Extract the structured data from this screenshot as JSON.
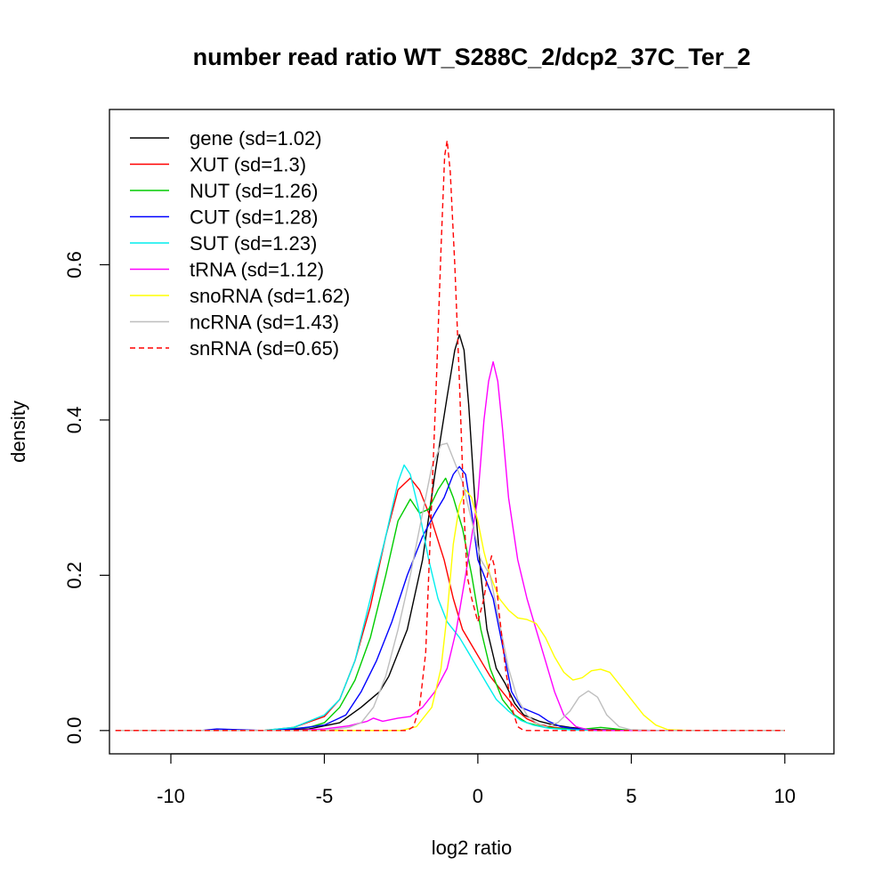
{
  "chart_data": {
    "type": "line",
    "title": "number read ratio WT_S288C_2/dcp2_37C_Ter_2",
    "xlabel": "log2 ratio",
    "ylabel": "density",
    "xlim": [
      -12.0,
      11.6
    ],
    "ylim": [
      -0.03,
      0.8
    ],
    "x_ticks": [
      -10,
      -5,
      0,
      5,
      10
    ],
    "x_tick_labels": [
      "-10",
      "-5",
      "0",
      "5",
      "10"
    ],
    "y_ticks": [
      0.0,
      0.2,
      0.4,
      0.6
    ],
    "y_tick_labels": [
      "0.0",
      "0.2",
      "0.4",
      "0.6"
    ],
    "grid": false,
    "legend_position": "top-left",
    "series": [
      {
        "name": "gene (sd=1.02)",
        "color": "#000000",
        "dashed": false,
        "points": [
          [
            -11.8,
            0
          ],
          [
            -7,
            0
          ],
          [
            -5.5,
            0.002
          ],
          [
            -4.5,
            0.01
          ],
          [
            -3.8,
            0.03
          ],
          [
            -3.2,
            0.05
          ],
          [
            -2.9,
            0.07
          ],
          [
            -2.3,
            0.13
          ],
          [
            -1.8,
            0.22
          ],
          [
            -1.4,
            0.33
          ],
          [
            -1.0,
            0.43
          ],
          [
            -0.75,
            0.49
          ],
          [
            -0.6,
            0.51
          ],
          [
            -0.45,
            0.49
          ],
          [
            -0.3,
            0.42
          ],
          [
            -0.1,
            0.3
          ],
          [
            0.1,
            0.2
          ],
          [
            0.3,
            0.13
          ],
          [
            0.6,
            0.08
          ],
          [
            0.9,
            0.06
          ],
          [
            1.2,
            0.035
          ],
          [
            1.5,
            0.02
          ],
          [
            2,
            0.012
          ],
          [
            2.5,
            0.007
          ],
          [
            3,
            0.004
          ],
          [
            3.5,
            0.002
          ],
          [
            4,
            0.001
          ],
          [
            5,
            0
          ],
          [
            10,
            0
          ]
        ]
      },
      {
        "name": "XUT (sd=1.3)",
        "color": "#ff0000",
        "dashed": false,
        "points": [
          [
            -11.8,
            0
          ],
          [
            -7,
            0
          ],
          [
            -6,
            0.004
          ],
          [
            -5,
            0.018
          ],
          [
            -4.5,
            0.04
          ],
          [
            -4,
            0.09
          ],
          [
            -3.5,
            0.16
          ],
          [
            -3,
            0.25
          ],
          [
            -2.6,
            0.31
          ],
          [
            -2.2,
            0.325
          ],
          [
            -1.9,
            0.31
          ],
          [
            -1.5,
            0.27
          ],
          [
            -1.1,
            0.22
          ],
          [
            -0.8,
            0.17
          ],
          [
            -0.5,
            0.13
          ],
          [
            -0.2,
            0.11
          ],
          [
            0.1,
            0.09
          ],
          [
            0.4,
            0.07
          ],
          [
            0.7,
            0.055
          ],
          [
            1.0,
            0.04
          ],
          [
            1.3,
            0.025
          ],
          [
            1.6,
            0.015
          ],
          [
            2,
            0.008
          ],
          [
            2.5,
            0.004
          ],
          [
            3,
            0.002
          ],
          [
            3.5,
            0.001
          ],
          [
            4,
            0
          ],
          [
            10,
            0
          ]
        ]
      },
      {
        "name": "NUT (sd=1.26)",
        "color": "#00cc00",
        "dashed": false,
        "points": [
          [
            -11.8,
            0
          ],
          [
            -7,
            0
          ],
          [
            -5.5,
            0.004
          ],
          [
            -5,
            0.01
          ],
          [
            -4.5,
            0.03
          ],
          [
            -4,
            0.065
          ],
          [
            -3.5,
            0.12
          ],
          [
            -3,
            0.2
          ],
          [
            -2.6,
            0.27
          ],
          [
            -2.2,
            0.298
          ],
          [
            -1.9,
            0.28
          ],
          [
            -1.6,
            0.285
          ],
          [
            -1.3,
            0.31
          ],
          [
            -1.05,
            0.325
          ],
          [
            -0.8,
            0.3
          ],
          [
            -0.5,
            0.26
          ],
          [
            -0.2,
            0.2
          ],
          [
            0.1,
            0.13
          ],
          [
            0.4,
            0.08
          ],
          [
            0.8,
            0.04
          ],
          [
            1.2,
            0.02
          ],
          [
            1.6,
            0.01
          ],
          [
            2,
            0.006
          ],
          [
            2.5,
            0.003
          ],
          [
            3,
            0.002
          ],
          [
            3.5,
            0.002
          ],
          [
            4,
            0.004
          ],
          [
            4.5,
            0.002
          ],
          [
            5,
            0
          ],
          [
            10,
            0
          ]
        ]
      },
      {
        "name": "CUT (sd=1.28)",
        "color": "#0000ff",
        "dashed": false,
        "points": [
          [
            -11.8,
            0
          ],
          [
            -9,
            0
          ],
          [
            -8.5,
            0.002
          ],
          [
            -7,
            0
          ],
          [
            -6,
            0.002
          ],
          [
            -5,
            0.007
          ],
          [
            -4.3,
            0.02
          ],
          [
            -3.8,
            0.05
          ],
          [
            -3.3,
            0.09
          ],
          [
            -2.8,
            0.14
          ],
          [
            -2.3,
            0.2
          ],
          [
            -1.8,
            0.25
          ],
          [
            -1.4,
            0.28
          ],
          [
            -1.1,
            0.3
          ],
          [
            -0.8,
            0.33
          ],
          [
            -0.6,
            0.34
          ],
          [
            -0.4,
            0.33
          ],
          [
            -0.2,
            0.28
          ],
          [
            0.0,
            0.22
          ],
          [
            0.2,
            0.2
          ],
          [
            0.5,
            0.17
          ],
          [
            0.8,
            0.11
          ],
          [
            1.1,
            0.05
          ],
          [
            1.4,
            0.03
          ],
          [
            1.7,
            0.025
          ],
          [
            2.0,
            0.02
          ],
          [
            2.3,
            0.012
          ],
          [
            2.7,
            0.005
          ],
          [
            3.2,
            0.002
          ],
          [
            4,
            0
          ],
          [
            10,
            0
          ]
        ]
      },
      {
        "name": "SUT (sd=1.23)",
        "color": "#00eeee",
        "dashed": false,
        "points": [
          [
            -11.8,
            0
          ],
          [
            -7,
            0
          ],
          [
            -6,
            0.004
          ],
          [
            -5,
            0.02
          ],
          [
            -4.5,
            0.04
          ],
          [
            -4,
            0.09
          ],
          [
            -3.5,
            0.17
          ],
          [
            -3,
            0.25
          ],
          [
            -2.6,
            0.32
          ],
          [
            -2.4,
            0.342
          ],
          [
            -2.2,
            0.33
          ],
          [
            -1.9,
            0.28
          ],
          [
            -1.6,
            0.22
          ],
          [
            -1.3,
            0.17
          ],
          [
            -1.0,
            0.14
          ],
          [
            -0.6,
            0.12
          ],
          [
            -0.3,
            0.1
          ],
          [
            0,
            0.08
          ],
          [
            0.3,
            0.06
          ],
          [
            0.6,
            0.04
          ],
          [
            1.0,
            0.025
          ],
          [
            1.4,
            0.013
          ],
          [
            1.8,
            0.007
          ],
          [
            2.3,
            0.003
          ],
          [
            3,
            0.001
          ],
          [
            4,
            0
          ],
          [
            10,
            0
          ]
        ]
      },
      {
        "name": "tRNA (sd=1.12)",
        "color": "#ff00ff",
        "dashed": false,
        "points": [
          [
            -11.8,
            0
          ],
          [
            -6,
            0
          ],
          [
            -5,
            0.002
          ],
          [
            -4.2,
            0.006
          ],
          [
            -3.6,
            0.012
          ],
          [
            -3.4,
            0.016
          ],
          [
            -3.1,
            0.012
          ],
          [
            -2.6,
            0.016
          ],
          [
            -2.2,
            0.018
          ],
          [
            -1.8,
            0.03
          ],
          [
            -1.4,
            0.05
          ],
          [
            -1.0,
            0.08
          ],
          [
            -0.7,
            0.13
          ],
          [
            -0.4,
            0.2
          ],
          [
            -0.2,
            0.25
          ],
          [
            0.0,
            0.3
          ],
          [
            0.2,
            0.4
          ],
          [
            0.35,
            0.45
          ],
          [
            0.5,
            0.475
          ],
          [
            0.65,
            0.45
          ],
          [
            0.8,
            0.39
          ],
          [
            1.0,
            0.3
          ],
          [
            1.3,
            0.22
          ],
          [
            1.6,
            0.17
          ],
          [
            1.9,
            0.13
          ],
          [
            2.2,
            0.09
          ],
          [
            2.5,
            0.05
          ],
          [
            2.8,
            0.02
          ],
          [
            3.2,
            0.005
          ],
          [
            3.6,
            0.001
          ],
          [
            4,
            0
          ],
          [
            10,
            0
          ]
        ]
      },
      {
        "name": "snoRNA (sd=1.62)",
        "color": "#ffff00",
        "dashed": false,
        "points": [
          [
            -11.8,
            0
          ],
          [
            -2.5,
            0
          ],
          [
            -2.0,
            0.005
          ],
          [
            -1.5,
            0.03
          ],
          [
            -1.2,
            0.08
          ],
          [
            -1.0,
            0.15
          ],
          [
            -0.8,
            0.24
          ],
          [
            -0.6,
            0.29
          ],
          [
            -0.4,
            0.31
          ],
          [
            -0.2,
            0.3
          ],
          [
            0.0,
            0.27
          ],
          [
            0.2,
            0.23
          ],
          [
            0.4,
            0.2
          ],
          [
            0.7,
            0.17
          ],
          [
            1.0,
            0.155
          ],
          [
            1.3,
            0.145
          ],
          [
            1.6,
            0.143
          ],
          [
            1.9,
            0.138
          ],
          [
            2.2,
            0.12
          ],
          [
            2.5,
            0.095
          ],
          [
            2.8,
            0.075
          ],
          [
            3.1,
            0.065
          ],
          [
            3.4,
            0.068
          ],
          [
            3.7,
            0.077
          ],
          [
            4.0,
            0.079
          ],
          [
            4.3,
            0.075
          ],
          [
            4.6,
            0.06
          ],
          [
            5,
            0.04
          ],
          [
            5.4,
            0.02
          ],
          [
            5.8,
            0.007
          ],
          [
            6.2,
            0.001
          ],
          [
            7,
            0
          ],
          [
            10,
            0
          ]
        ]
      },
      {
        "name": "ncRNA (sd=1.43)",
        "color": "#bebebe",
        "dashed": false,
        "points": [
          [
            -11.8,
            0
          ],
          [
            -5,
            0
          ],
          [
            -4.2,
            0.004
          ],
          [
            -3.8,
            0.01
          ],
          [
            -3.4,
            0.03
          ],
          [
            -3.0,
            0.07
          ],
          [
            -2.6,
            0.13
          ],
          [
            -2.2,
            0.2
          ],
          [
            -1.8,
            0.28
          ],
          [
            -1.5,
            0.34
          ],
          [
            -1.2,
            0.368
          ],
          [
            -1.0,
            0.37
          ],
          [
            -0.8,
            0.35
          ],
          [
            -0.5,
            0.32
          ],
          [
            -0.2,
            0.27
          ],
          [
            0.1,
            0.22
          ],
          [
            0.4,
            0.2
          ],
          [
            0.7,
            0.14
          ],
          [
            1.0,
            0.08
          ],
          [
            1.3,
            0.04
          ],
          [
            1.6,
            0.02
          ],
          [
            1.9,
            0.01
          ],
          [
            2.2,
            0.005
          ],
          [
            2.6,
            0.01
          ],
          [
            3.0,
            0.025
          ],
          [
            3.3,
            0.043
          ],
          [
            3.6,
            0.051
          ],
          [
            3.9,
            0.043
          ],
          [
            4.2,
            0.02
          ],
          [
            4.6,
            0.005
          ],
          [
            5,
            0.001
          ],
          [
            6,
            0
          ],
          [
            10,
            0
          ]
        ]
      },
      {
        "name": "snRNA (sd=0.65)",
        "color": "#ff0000",
        "dashed": true,
        "points": [
          [
            -11.8,
            0
          ],
          [
            -2.3,
            0
          ],
          [
            -2.1,
            0.005
          ],
          [
            -1.9,
            0.03
          ],
          [
            -1.7,
            0.1
          ],
          [
            -1.6,
            0.2
          ],
          [
            -1.5,
            0.3
          ],
          [
            -1.35,
            0.45
          ],
          [
            -1.2,
            0.62
          ],
          [
            -1.08,
            0.74
          ],
          [
            -1.0,
            0.76
          ],
          [
            -0.9,
            0.72
          ],
          [
            -0.75,
            0.6
          ],
          [
            -0.6,
            0.45
          ],
          [
            -0.45,
            0.28
          ],
          [
            -0.35,
            0.2
          ],
          [
            -0.2,
            0.17
          ],
          [
            0.0,
            0.14
          ],
          [
            0.2,
            0.17
          ],
          [
            0.35,
            0.21
          ],
          [
            0.45,
            0.225
          ],
          [
            0.55,
            0.21
          ],
          [
            0.7,
            0.15
          ],
          [
            0.9,
            0.08
          ],
          [
            1.1,
            0.03
          ],
          [
            1.3,
            0.005
          ],
          [
            1.5,
            0
          ],
          [
            10,
            0
          ]
        ]
      }
    ]
  }
}
